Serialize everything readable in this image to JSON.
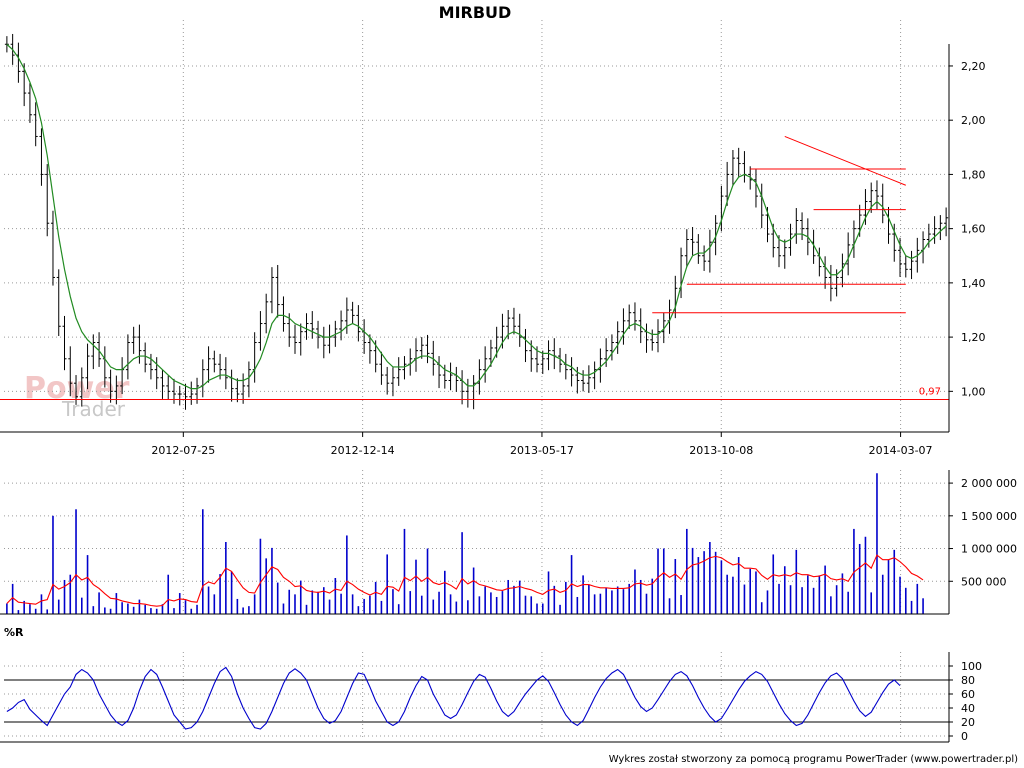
{
  "title": "MIRBUD",
  "footer": "Wykres został stworzony za pomocą programu PowerTrader (www.powertrader.pl)",
  "watermark": {
    "line1": "Power",
    "line2": "Trader"
  },
  "colors": {
    "candle": "#000000",
    "moving_average": "#228B22",
    "trendline": "#ff0000",
    "volume": "#0000cc",
    "volume_average": "#ff0000",
    "williams_r": "#0000cc",
    "grid": "#9a9a9a"
  },
  "chart_data": [
    {
      "type": "line",
      "panel": "price",
      "title": "MIRBUD",
      "x_labels": [
        "2012-07-25",
        "2012-12-14",
        "2013-05-17",
        "2013-10-08",
        "2014-03-07"
      ],
      "ylim": [
        0.85,
        2.34
      ],
      "y_ticks": [
        "2,20",
        "2,00",
        "1,80",
        "1,60",
        "1,40",
        "1,20",
        "1,00"
      ],
      "series": [
        {
          "style": "ohlc-bars",
          "values": [
            2.28,
            2.24,
            2.18,
            2.1,
            2.02,
            1.94,
            1.8,
            1.62,
            1.42,
            1.24,
            1.12,
            1.03,
            0.98,
            1.05,
            1.13,
            1.18,
            1.12,
            1.05,
            1.0,
            1.02,
            1.08,
            1.18,
            1.2,
            1.15,
            1.1,
            1.08,
            1.05,
            1.02,
            1.0,
            0.99,
            0.99,
            0.98,
            0.99,
            1.02,
            1.08,
            1.12,
            1.1,
            1.08,
            1.05,
            1.01,
            0.99,
            1.02,
            1.08,
            1.18,
            1.25,
            1.33,
            1.42,
            1.32,
            1.25,
            1.2,
            1.18,
            1.22,
            1.25,
            1.23,
            1.2,
            1.17,
            1.2,
            1.23,
            1.26,
            1.3,
            1.28,
            1.22,
            1.18,
            1.15,
            1.1,
            1.06,
            1.03,
            1.05,
            1.08,
            1.1,
            1.12,
            1.15,
            1.17,
            1.14,
            1.1,
            1.06,
            1.04,
            1.06,
            1.04,
            1.0,
            0.97,
            1.03,
            1.08,
            1.12,
            1.16,
            1.2,
            1.24,
            1.27,
            1.24,
            1.2,
            1.15,
            1.12,
            1.1,
            1.12,
            1.15,
            1.13,
            1.1,
            1.08,
            1.06,
            1.04,
            1.03,
            1.05,
            1.08,
            1.12,
            1.15,
            1.18,
            1.22,
            1.26,
            1.29,
            1.26,
            1.22,
            1.19,
            1.18,
            1.22,
            1.26,
            1.3,
            1.38,
            1.5,
            1.56,
            1.55,
            1.5,
            1.48,
            1.55,
            1.62,
            1.72,
            1.8,
            1.86,
            1.84,
            1.8,
            1.78,
            1.72,
            1.65,
            1.58,
            1.53,
            1.5,
            1.53,
            1.58,
            1.63,
            1.6,
            1.55,
            1.5,
            1.46,
            1.42,
            1.38,
            1.42,
            1.47,
            1.54,
            1.6,
            1.65,
            1.7,
            1.74,
            1.72,
            1.65,
            1.58,
            1.52,
            1.47,
            1.45,
            1.48,
            1.52,
            1.56,
            1.58,
            1.6,
            1.62,
            1.64
          ]
        },
        {
          "name": "",
          "role": "moving-average",
          "values": [
            2.28,
            2.26,
            2.23,
            2.19,
            2.14,
            2.08,
            1.99,
            1.87,
            1.72,
            1.57,
            1.45,
            1.35,
            1.27,
            1.22,
            1.19,
            1.17,
            1.15,
            1.12,
            1.09,
            1.08,
            1.08,
            1.1,
            1.12,
            1.13,
            1.13,
            1.12,
            1.1,
            1.08,
            1.06,
            1.04,
            1.03,
            1.02,
            1.01,
            1.01,
            1.02,
            1.04,
            1.05,
            1.06,
            1.06,
            1.05,
            1.04,
            1.04,
            1.05,
            1.08,
            1.12,
            1.18,
            1.25,
            1.28,
            1.28,
            1.27,
            1.25,
            1.24,
            1.23,
            1.22,
            1.21,
            1.2,
            1.2,
            1.21,
            1.22,
            1.24,
            1.25,
            1.24,
            1.22,
            1.2,
            1.17,
            1.14,
            1.11,
            1.09,
            1.09,
            1.09,
            1.1,
            1.12,
            1.13,
            1.13,
            1.12,
            1.1,
            1.08,
            1.07,
            1.06,
            1.04,
            1.02,
            1.02,
            1.04,
            1.07,
            1.1,
            1.14,
            1.18,
            1.21,
            1.22,
            1.21,
            1.19,
            1.17,
            1.15,
            1.14,
            1.14,
            1.13,
            1.12,
            1.1,
            1.09,
            1.07,
            1.06,
            1.06,
            1.07,
            1.09,
            1.11,
            1.14,
            1.17,
            1.21,
            1.24,
            1.25,
            1.24,
            1.22,
            1.21,
            1.21,
            1.23,
            1.26,
            1.31,
            1.39,
            1.46,
            1.5,
            1.51,
            1.51,
            1.53,
            1.57,
            1.63,
            1.7,
            1.76,
            1.79,
            1.8,
            1.79,
            1.77,
            1.72,
            1.66,
            1.6,
            1.56,
            1.55,
            1.56,
            1.58,
            1.58,
            1.57,
            1.54,
            1.5,
            1.46,
            1.43,
            1.43,
            1.45,
            1.49,
            1.54,
            1.59,
            1.64,
            1.68,
            1.7,
            1.68,
            1.64,
            1.59,
            1.54,
            1.5,
            1.49,
            1.5,
            1.52,
            1.55,
            1.57,
            1.59,
            1.61
          ]
        }
      ],
      "annotations": [
        {
          "type": "hline",
          "value": 0.97,
          "label": "0,97"
        },
        {
          "type": "hline",
          "value": 1.29,
          "from_index": 112,
          "to_index": 156
        },
        {
          "type": "hline",
          "value": 1.395,
          "from_index": 118,
          "to_index": 156
        },
        {
          "type": "hline",
          "value": 1.67,
          "from_index": 140,
          "to_index": 156
        },
        {
          "type": "hline",
          "value": 1.82,
          "from_index": 129,
          "to_index": 156
        },
        {
          "type": "trendline",
          "from": {
            "index": 135,
            "value": 1.94
          },
          "to": {
            "index": 156,
            "value": 1.76
          }
        }
      ],
      "grid": true
    },
    {
      "type": "bar",
      "panel": "volume",
      "ylim": [
        0,
        2200000
      ],
      "y_ticks": [
        "2 000 000",
        "1 500 000",
        "1 000 000",
        "500 000"
      ],
      "series": [
        {
          "style": "bars",
          "values": [
            160000,
            460000,
            60000,
            200000,
            150000,
            80000,
            300000,
            70000,
            1500000,
            220000,
            520000,
            600000,
            1600000,
            250000,
            900000,
            120000,
            330000,
            100000,
            80000,
            320000,
            180000,
            160000,
            110000,
            220000,
            140000,
            90000,
            80000,
            150000,
            600000,
            90000,
            320000,
            210000,
            80000,
            140000,
            1600000,
            420000,
            300000,
            610000,
            1100000,
            650000,
            230000,
            100000,
            120000,
            300000,
            1150000,
            850000,
            1010000,
            480000,
            160000,
            370000,
            300000,
            510000,
            140000,
            360000,
            340000,
            410000,
            220000,
            550000,
            310000,
            1200000,
            300000,
            120000,
            230000,
            280000,
            490000,
            200000,
            910000,
            380000,
            150000,
            1300000,
            350000,
            830000,
            280000,
            1000000,
            220000,
            340000,
            660000,
            300000,
            190000,
            1250000,
            210000,
            710000,
            270000,
            420000,
            330000,
            260000,
            350000,
            520000,
            430000,
            510000,
            280000,
            270000,
            160000,
            160000,
            650000,
            430000,
            140000,
            490000,
            900000,
            260000,
            590000,
            450000,
            300000,
            310000,
            400000,
            360000,
            420000,
            380000,
            460000,
            680000,
            520000,
            310000,
            540000,
            1000000,
            1000000,
            240000,
            840000,
            290000,
            1300000,
            1010000,
            870000,
            960000,
            1100000,
            950000,
            820000,
            600000,
            570000,
            870000,
            450000,
            690000,
            650000,
            180000,
            360000,
            910000,
            460000,
            730000,
            440000,
            980000,
            410000,
            590000,
            400000,
            590000,
            740000,
            270000,
            440000,
            620000,
            340000,
            1300000,
            1070000,
            1180000,
            330000,
            2150000,
            600000,
            830000,
            980000,
            570000,
            400000,
            200000,
            460000,
            240000
          ]
        },
        {
          "name": "",
          "role": "volume-average",
          "values": [
            160000,
            250000,
            180000,
            170000,
            160000,
            150000,
            200000,
            220000,
            450000,
            380000,
            420000,
            480000,
            600000,
            520000,
            560000,
            450000,
            390000,
            310000,
            240000,
            230000,
            200000,
            180000,
            160000,
            160000,
            150000,
            130000,
            120000,
            130000,
            220000,
            200000,
            230000,
            220000,
            190000,
            180000,
            430000,
            490000,
            460000,
            560000,
            700000,
            650000,
            520000,
            400000,
            330000,
            320000,
            480000,
            600000,
            720000,
            680000,
            560000,
            500000,
            420000,
            430000,
            360000,
            340000,
            330000,
            350000,
            320000,
            380000,
            360000,
            500000,
            450000,
            380000,
            330000,
            290000,
            330000,
            300000,
            420000,
            410000,
            350000,
            560000,
            510000,
            580000,
            500000,
            560000,
            480000,
            450000,
            480000,
            440000,
            380000,
            540000,
            460000,
            510000,
            450000,
            430000,
            400000,
            370000,
            360000,
            390000,
            400000,
            420000,
            390000,
            370000,
            330000,
            300000,
            360000,
            380000,
            330000,
            360000,
            460000,
            420000,
            450000,
            450000,
            420000,
            400000,
            400000,
            390000,
            390000,
            390000,
            400000,
            460000,
            470000,
            440000,
            460000,
            560000,
            630000,
            560000,
            610000,
            530000,
            680000,
            750000,
            770000,
            810000,
            860000,
            880000,
            860000,
            800000,
            750000,
            770000,
            700000,
            700000,
            690000,
            590000,
            530000,
            600000,
            580000,
            600000,
            580000,
            630000,
            600000,
            600000,
            570000,
            580000,
            610000,
            540000,
            520000,
            540000,
            500000,
            640000,
            710000,
            780000,
            700000,
            900000,
            830000,
            830000,
            860000,
            800000,
            720000,
            620000,
            580000,
            520000
          ]
        }
      ],
      "grid": true
    },
    {
      "type": "line",
      "panel": "oscillator",
      "title": "%R",
      "ylim": [
        0,
        100
      ],
      "y_ticks": [
        "100",
        "80",
        "60",
        "40",
        "20",
        "0"
      ],
      "reference_lines": [
        80,
        20
      ],
      "series": [
        {
          "values": [
            35,
            40,
            48,
            52,
            38,
            30,
            22,
            15,
            30,
            45,
            60,
            70,
            88,
            95,
            90,
            80,
            60,
            45,
            30,
            20,
            15,
            22,
            40,
            65,
            85,
            95,
            88,
            70,
            50,
            30,
            20,
            10,
            12,
            20,
            35,
            55,
            75,
            92,
            98,
            85,
            60,
            40,
            25,
            12,
            10,
            18,
            35,
            55,
            75,
            90,
            96,
            90,
            80,
            60,
            40,
            25,
            18,
            22,
            35,
            55,
            75,
            90,
            88,
            70,
            50,
            35,
            20,
            15,
            20,
            35,
            55,
            72,
            85,
            80,
            60,
            45,
            30,
            25,
            30,
            45,
            62,
            78,
            88,
            84,
            68,
            50,
            35,
            28,
            35,
            48,
            60,
            70,
            80,
            86,
            78,
            62,
            45,
            30,
            20,
            15,
            22,
            38,
            55,
            70,
            82,
            90,
            95,
            88,
            72,
            55,
            42,
            35,
            40,
            52,
            65,
            78,
            88,
            92,
            86,
            72,
            55,
            40,
            28,
            20,
            25,
            38,
            52,
            66,
            78,
            86,
            92,
            88,
            78,
            62,
            46,
            32,
            22,
            15,
            18,
            30,
            46,
            62,
            76,
            86,
            90,
            82,
            66,
            50,
            36,
            28,
            34,
            48,
            62,
            74,
            80,
            72
          ]
        }
      ],
      "grid": true
    }
  ]
}
